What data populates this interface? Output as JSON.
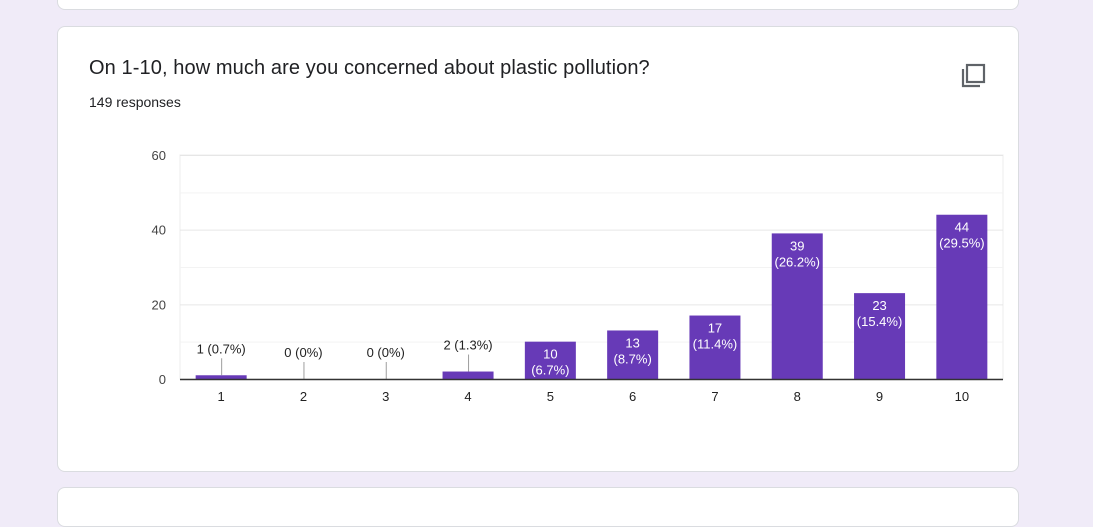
{
  "question": {
    "title": "On 1-10, how much are you concerned about plastic pollution?",
    "responses": "149 responses",
    "copy_icon": "copy-icon"
  },
  "colors": {
    "bar": "#673ab7",
    "background": "#f0ebf8"
  },
  "chart_data": {
    "type": "bar",
    "title": "",
    "xlabel": "",
    "ylabel": "",
    "categories": [
      "1",
      "2",
      "3",
      "4",
      "5",
      "6",
      "7",
      "8",
      "9",
      "10"
    ],
    "values": [
      1,
      0,
      0,
      2,
      10,
      13,
      17,
      39,
      23,
      44
    ],
    "labels": [
      "1 (0.7%)",
      "0 (0%)",
      "0 (0%)",
      "2 (1.3%)",
      "10 (6.7%)",
      "13 (8.7%)",
      "17 (11.4%)",
      "39 (26.2%)",
      "23 (15.4%)",
      "44 (29.5%)"
    ],
    "ylim": [
      0,
      60
    ],
    "yticks": [
      0,
      20,
      40,
      60
    ],
    "grid": true
  }
}
